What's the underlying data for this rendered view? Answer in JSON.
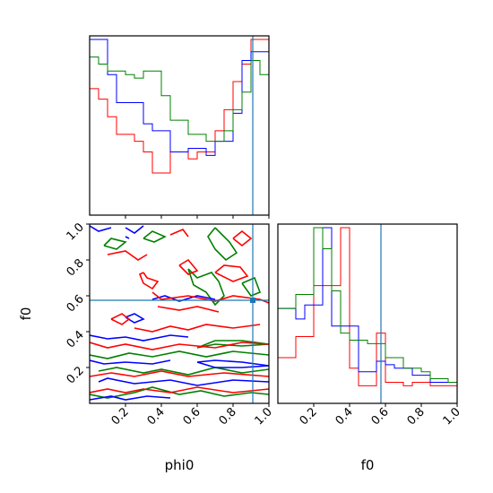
{
  "chart_data": {
    "type": "corner",
    "variables": [
      "phi0",
      "f0"
    ],
    "xlabels": [
      "phi0",
      "f0"
    ],
    "ylabel": "f0",
    "xlim": [
      0,
      1
    ],
    "ylim": [
      0,
      1
    ],
    "ticks": [
      0.2,
      0.4,
      0.6,
      0.8,
      1.0
    ],
    "tick_labels": [
      "0.2",
      "0.4",
      "0.6",
      "0.8",
      "1.0"
    ],
    "series_colors": [
      "#ff0000",
      "#0000ff",
      "#008000"
    ],
    "truth": {
      "phi0": 0.91,
      "f0": 0.575,
      "color": "#1f77b4"
    },
    "hist_phi0": {
      "bins": 20,
      "bin_edges_start": 0,
      "bin_width": 0.05,
      "max": 10,
      "series": [
        {
          "color": "red",
          "values": [
            7.2,
            6.6,
            5.6,
            4.6,
            4.6,
            4.2,
            3.6,
            2.4,
            2.4,
            3.6,
            3.6,
            3.2,
            3.6,
            3.6,
            4.8,
            6.0,
            7.6,
            8.6,
            10,
            10
          ]
        },
        {
          "color": "blue",
          "values": [
            10,
            10,
            8.0,
            6.4,
            6.4,
            6.4,
            5.2,
            4.8,
            4.8,
            3.6,
            3.6,
            3.8,
            3.8,
            3.4,
            4.2,
            4.2,
            5.8,
            8.8,
            9.3,
            9.3
          ]
        },
        {
          "color": "green",
          "values": [
            9.0,
            8.6,
            8.2,
            8.2,
            8.0,
            7.8,
            8.2,
            8.2,
            6.8,
            5.4,
            5.4,
            4.6,
            4.6,
            4.2,
            4.2,
            4.8,
            6.0,
            7.0,
            8.8,
            8.0
          ]
        }
      ]
    },
    "hist_f0": {
      "bins": 20,
      "bin_edges_start": 0,
      "bin_width": 0.05,
      "max": 10,
      "series": [
        {
          "color": "red",
          "values": [
            2.6,
            2.6,
            3.8,
            3.8,
            6.7,
            6.7,
            6.7,
            10,
            2.0,
            1.0,
            1.0,
            4.0,
            1.2,
            1.2,
            1.0,
            1.2,
            1.2,
            1.0,
            1.0,
            1.0
          ]
        },
        {
          "color": "blue",
          "values": [
            5.4,
            5.4,
            4.8,
            5.6,
            5.6,
            10,
            4.4,
            4.4,
            4.4,
            1.8,
            1.8,
            2.4,
            2.2,
            2.0,
            2.0,
            1.6,
            1.6,
            1.2,
            1.2,
            1.2
          ]
        },
        {
          "color": "green",
          "values": [
            5.4,
            5.4,
            6.2,
            6.2,
            10,
            8.8,
            6.4,
            4.0,
            3.6,
            3.6,
            3.4,
            3.4,
            2.6,
            2.6,
            2.0,
            2.0,
            1.8,
            1.4,
            1.4,
            1.2
          ]
        }
      ]
    },
    "contour_2d": {
      "note_x": "phi0",
      "note_y": "f0",
      "levels": [
        {
          "color": "green",
          "paths": [
            [
              [
                0.0,
                0.05
              ],
              [
                0.1,
                0.03
              ],
              [
                0.25,
                0.06
              ],
              [
                0.35,
                0.09
              ],
              [
                0.5,
                0.05
              ],
              [
                0.62,
                0.07
              ],
              [
                0.75,
                0.04
              ],
              [
                0.9,
                0.06
              ],
              [
                1.0,
                0.05
              ]
            ],
            [
              [
                0.05,
                0.18
              ],
              [
                0.15,
                0.2
              ],
              [
                0.3,
                0.17
              ],
              [
                0.4,
                0.19
              ],
              [
                0.55,
                0.16
              ],
              [
                0.7,
                0.2
              ],
              [
                0.85,
                0.17
              ],
              [
                1.0,
                0.19
              ]
            ],
            [
              [
                0.0,
                0.27
              ],
              [
                0.1,
                0.25
              ],
              [
                0.22,
                0.28
              ],
              [
                0.35,
                0.26
              ],
              [
                0.5,
                0.29
              ],
              [
                0.65,
                0.26
              ],
              [
                0.8,
                0.29
              ],
              [
                1.0,
                0.27
              ]
            ],
            [
              [
                0.6,
                0.31
              ],
              [
                0.7,
                0.33
              ],
              [
                0.85,
                0.32
              ],
              [
                1.0,
                0.33
              ],
              [
                0.85,
                0.35
              ],
              [
                0.7,
                0.35
              ],
              [
                0.6,
                0.31
              ]
            ],
            [
              [
                0.55,
                0.75
              ],
              [
                0.6,
                0.7
              ],
              [
                0.68,
                0.73
              ],
              [
                0.72,
                0.68
              ],
              [
                0.75,
                0.6
              ],
              [
                0.7,
                0.55
              ],
              [
                0.65,
                0.62
              ],
              [
                0.58,
                0.66
              ],
              [
                0.55,
                0.75
              ]
            ],
            [
              [
                0.08,
                0.88
              ],
              [
                0.15,
                0.86
              ],
              [
                0.2,
                0.9
              ],
              [
                0.12,
                0.92
              ],
              [
                0.08,
                0.88
              ]
            ],
            [
              [
                0.3,
                0.92
              ],
              [
                0.35,
                0.96
              ],
              [
                0.42,
                0.93
              ],
              [
                0.36,
                0.9
              ],
              [
                0.3,
                0.92
              ]
            ],
            [
              [
                0.7,
                0.98
              ],
              [
                0.78,
                0.9
              ],
              [
                0.82,
                0.84
              ],
              [
                0.76,
                0.8
              ],
              [
                0.7,
                0.86
              ],
              [
                0.66,
                0.93
              ],
              [
                0.7,
                0.98
              ]
            ],
            [
              [
                0.85,
                0.67
              ],
              [
                0.92,
                0.7
              ],
              [
                0.95,
                0.62
              ],
              [
                0.9,
                0.6
              ],
              [
                0.85,
                0.67
              ]
            ]
          ]
        },
        {
          "color": "blue",
          "paths": [
            [
              [
                0.0,
                0.02
              ],
              [
                0.12,
                0.04
              ],
              [
                0.2,
                0.02
              ],
              [
                0.32,
                0.04
              ],
              [
                0.45,
                0.03
              ]
            ],
            [
              [
                0.05,
                0.12
              ],
              [
                0.1,
                0.14
              ],
              [
                0.25,
                0.11
              ],
              [
                0.45,
                0.13
              ],
              [
                0.6,
                0.1
              ],
              [
                0.8,
                0.13
              ],
              [
                1.0,
                0.12
              ]
            ],
            [
              [
                0.0,
                0.24
              ],
              [
                0.08,
                0.22
              ],
              [
                0.2,
                0.23
              ],
              [
                0.35,
                0.22
              ],
              [
                0.45,
                0.24
              ]
            ],
            [
              [
                0.0,
                0.38
              ],
              [
                0.1,
                0.36
              ],
              [
                0.2,
                0.37
              ],
              [
                0.3,
                0.35
              ],
              [
                0.45,
                0.38
              ],
              [
                0.55,
                0.37
              ]
            ],
            [
              [
                0.6,
                0.23
              ],
              [
                0.7,
                0.2
              ],
              [
                0.85,
                0.2
              ],
              [
                1.0,
                0.21
              ],
              [
                0.85,
                0.23
              ],
              [
                0.7,
                0.24
              ],
              [
                0.6,
                0.23
              ]
            ],
            [
              [
                0.2,
                0.48
              ],
              [
                0.25,
                0.5
              ],
              [
                0.3,
                0.47
              ],
              [
                0.25,
                0.45
              ],
              [
                0.2,
                0.48
              ]
            ],
            [
              [
                0.0,
                0.99
              ],
              [
                0.05,
                0.96
              ],
              [
                0.12,
                0.98
              ]
            ],
            [
              [
                0.2,
                0.98
              ],
              [
                0.25,
                0.95
              ],
              [
                0.3,
                0.99
              ]
            ],
            [
              [
                0.35,
                0.58
              ],
              [
                0.42,
                0.6
              ],
              [
                0.5,
                0.57
              ],
              [
                0.6,
                0.6
              ],
              [
                0.7,
                0.58
              ]
            ],
            [
              [
                0.2,
                0.93
              ],
              [
                0.22,
                0.92
              ]
            ]
          ]
        },
        {
          "color": "red",
          "paths": [
            [
              [
                0.0,
                0.06
              ],
              [
                0.1,
                0.08
              ],
              [
                0.2,
                0.06
              ],
              [
                0.3,
                0.08
              ],
              [
                0.45,
                0.06
              ],
              [
                0.6,
                0.09
              ],
              [
                0.8,
                0.06
              ],
              [
                1.0,
                0.08
              ]
            ],
            [
              [
                0.0,
                0.15
              ],
              [
                0.12,
                0.17
              ],
              [
                0.25,
                0.15
              ],
              [
                0.4,
                0.18
              ],
              [
                0.55,
                0.15
              ],
              [
                0.75,
                0.17
              ],
              [
                1.0,
                0.15
              ]
            ],
            [
              [
                0.0,
                0.34
              ],
              [
                0.1,
                0.31
              ],
              [
                0.2,
                0.33
              ],
              [
                0.35,
                0.3
              ],
              [
                0.5,
                0.33
              ],
              [
                0.7,
                0.31
              ],
              [
                0.85,
                0.34
              ],
              [
                1.0,
                0.33
              ]
            ],
            [
              [
                0.25,
                0.42
              ],
              [
                0.35,
                0.4
              ],
              [
                0.45,
                0.43
              ],
              [
                0.55,
                0.41
              ],
              [
                0.65,
                0.44
              ],
              [
                0.8,
                0.42
              ],
              [
                0.95,
                0.44
              ]
            ],
            [
              [
                0.35,
                0.62
              ],
              [
                0.4,
                0.58
              ],
              [
                0.55,
                0.6
              ],
              [
                0.7,
                0.57
              ],
              [
                0.8,
                0.6
              ],
              [
                0.95,
                0.58
              ],
              [
                1.0,
                0.56
              ]
            ],
            [
              [
                0.38,
                0.54
              ],
              [
                0.5,
                0.52
              ],
              [
                0.6,
                0.54
              ],
              [
                0.72,
                0.51
              ]
            ],
            [
              [
                0.1,
                0.83
              ],
              [
                0.2,
                0.85
              ],
              [
                0.27,
                0.8
              ],
              [
                0.32,
                0.83
              ]
            ],
            [
              [
                0.3,
                0.73
              ],
              [
                0.32,
                0.7
              ],
              [
                0.38,
                0.68
              ],
              [
                0.35,
                0.64
              ],
              [
                0.3,
                0.67
              ],
              [
                0.28,
                0.72
              ],
              [
                0.3,
                0.73
              ]
            ],
            [
              [
                0.5,
                0.77
              ],
              [
                0.55,
                0.8
              ],
              [
                0.6,
                0.74
              ],
              [
                0.55,
                0.72
              ],
              [
                0.5,
                0.77
              ]
            ],
            [
              [
                0.7,
                0.73
              ],
              [
                0.8,
                0.68
              ],
              [
                0.88,
                0.71
              ],
              [
                0.84,
                0.76
              ],
              [
                0.75,
                0.77
              ],
              [
                0.7,
                0.73
              ]
            ],
            [
              [
                0.8,
                0.92
              ],
              [
                0.85,
                0.88
              ],
              [
                0.9,
                0.92
              ],
              [
                0.85,
                0.96
              ],
              [
                0.8,
                0.92
              ]
            ],
            [
              [
                0.12,
                0.47
              ],
              [
                0.18,
                0.5
              ],
              [
                0.22,
                0.47
              ],
              [
                0.18,
                0.44
              ],
              [
                0.12,
                0.47
              ]
            ],
            [
              [
                0.45,
                0.94
              ],
              [
                0.52,
                0.97
              ],
              [
                0.55,
                0.93
              ]
            ]
          ]
        }
      ]
    }
  }
}
